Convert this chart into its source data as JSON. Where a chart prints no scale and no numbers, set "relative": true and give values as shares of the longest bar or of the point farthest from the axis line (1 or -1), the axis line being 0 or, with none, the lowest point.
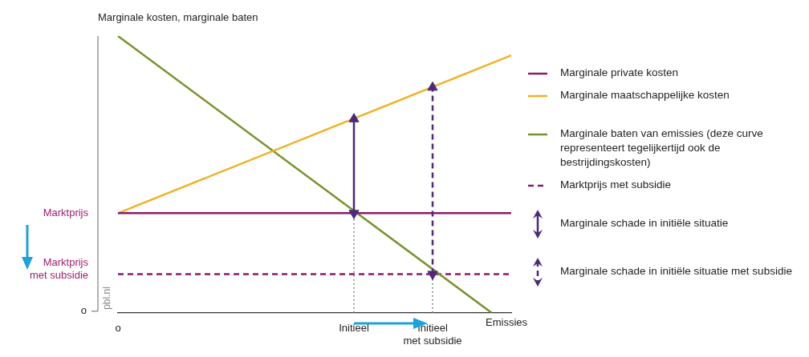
{
  "chart_data": {
    "type": "line",
    "relative": true,
    "ylabel": "Marginale kosten, marginale baten",
    "xlabel": "Emissies",
    "categories": [
      "o",
      null,
      null,
      null,
      null,
      null,
      null,
      null,
      null,
      null,
      null,
      null,
      "Initieel",
      null,
      null,
      null,
      "Initieel met subsidie",
      null,
      null,
      null,
      null
    ],
    "legend": "right",
    "annotations": [
      "o",
      "Marktprijs",
      "Marktprijs met subsidie",
      "pbl.nl"
    ],
    "series": [
      {
        "name": "Marginale private kosten",
        "color": "#8b1a6b",
        "values": [
          0.36,
          null,
          null,
          null,
          null,
          null,
          null,
          null,
          null,
          null,
          null,
          null,
          null,
          null,
          null,
          null,
          null,
          null,
          null,
          null,
          0.36
        ]
      },
      {
        "name": "Marginale maatschappelijke kosten",
        "color": "#f0b323",
        "values": [
          0.36,
          null,
          null,
          null,
          null,
          null,
          null,
          null,
          null,
          null,
          null,
          null,
          null,
          null,
          null,
          null,
          null,
          null,
          null,
          null,
          0.93
        ]
      },
      {
        "name": "Marginale baten van emissies (deze curve representeert tegelijkertijd ook de bestrijdingskosten)",
        "color": "#77932b",
        "values": [
          1,
          null,
          null,
          null,
          null,
          null,
          null,
          null,
          null,
          null,
          null,
          null,
          null,
          null,
          null,
          null,
          null,
          null,
          null,
          0,
          null
        ]
      },
      {
        "name": "Marktprijs met subsidie",
        "color": "#8b1a6b",
        "line_style": "dashed",
        "values": [
          0.14,
          null,
          null,
          null,
          null,
          null,
          null,
          null,
          null,
          null,
          null,
          null,
          null,
          null,
          null,
          null,
          null,
          null,
          null,
          null,
          0.14
        ]
      },
      {
        "name": "Marginale schade in initiële situatie",
        "color": "#4b2a7b",
        "marker": "triangle",
        "x": [
          "Initieel",
          "Initieel"
        ],
        "values": [
          0.36,
          0.7
        ]
      },
      {
        "name": "Marginale schade in initiële situatie met subsidie",
        "color": "#4b2a7b",
        "marker": "triangle",
        "line_style": "dashed",
        "x": [
          "Initieel met subsidie",
          "Initieel met subsidie"
        ],
        "values": [
          0.14,
          0.814
        ]
      },
      {
        "color": "#999999",
        "line_style": "dotted",
        "x": [
          "Initieel",
          "Initieel"
        ],
        "values": [
          0,
          0.36
        ]
      },
      {
        "color": "#999999",
        "line_style": "dotted",
        "x": [
          "Initieel met subsidie",
          "Initieel met subsidie"
        ],
        "values": [
          0,
          0.14
        ]
      }
    ]
  }
}
